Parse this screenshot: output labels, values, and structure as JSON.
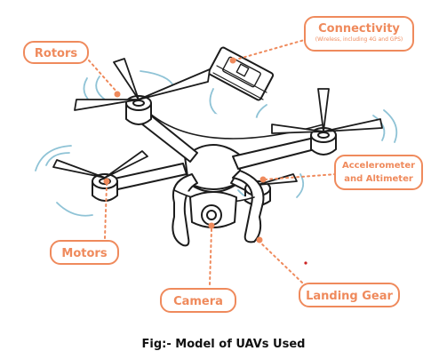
{
  "labels": {
    "rotors": "Rotors",
    "connectivity": "Connectivity",
    "connectivity_sub": "(Wireless, including 4G and GPS)",
    "accelerometer_line1": "Accelerometer",
    "accelerometer_line2": "and Altimeter",
    "motors": "Motors",
    "camera": "Camera",
    "landing_gear": "Landing Gear"
  },
  "caption": "Fig:-   Model of UAVs Used",
  "colors": {
    "accent": "#ef8a5c",
    "line": "#1c1c1c",
    "motion": "#8fc3d6"
  }
}
